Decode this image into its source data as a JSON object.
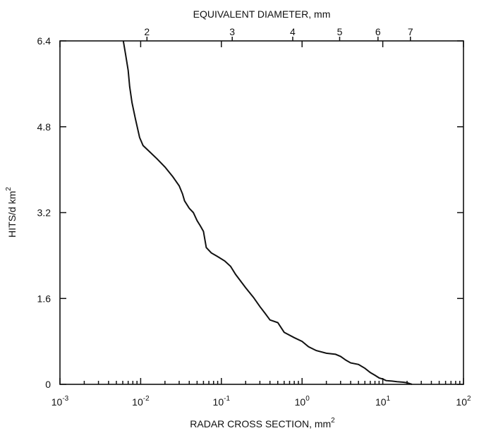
{
  "chart_data": {
    "type": "line",
    "title": "",
    "top_axis": {
      "label": "EQUIVALENT DIAMETER, mm",
      "ticks": [
        2,
        3,
        4,
        5,
        6,
        7
      ],
      "tick_labels": [
        "2",
        "3",
        "4",
        "5",
        "6",
        "7"
      ]
    },
    "xlabel": {
      "base": "RADAR CROSS SECTION, mm",
      "superscript": "2"
    },
    "ylabel": "HITS/d km",
    "ylabel_superscript": "2",
    "xscale": "log",
    "xlim": [
      0.001,
      100
    ],
    "ylim": [
      0,
      6.4
    ],
    "x_ticks": [
      0.001,
      0.01,
      0.1,
      1,
      10,
      100
    ],
    "x_tick_labels": [
      {
        "base": "10",
        "exp": "-3"
      },
      {
        "base": "10",
        "exp": "-2"
      },
      {
        "base": "10",
        "exp": "-1"
      },
      {
        "base": "10",
        "exp": "0"
      },
      {
        "base": "10",
        "exp": "1"
      },
      {
        "base": "10",
        "exp": "2"
      }
    ],
    "y_ticks": [
      0,
      1.6,
      3.2,
      4.8,
      6.4
    ],
    "y_tick_labels": [
      "0",
      "1.6",
      "3.2",
      "4.8",
      "6.4"
    ],
    "grid": false,
    "series": [
      {
        "x": [
          0.0061,
          0.0065,
          0.007,
          0.0073,
          0.0078,
          0.0086,
          0.0097,
          0.0107,
          0.013,
          0.016,
          0.02,
          0.025,
          0.03,
          0.033,
          0.035,
          0.04,
          0.045,
          0.05,
          0.055,
          0.06,
          0.065,
          0.075,
          0.09,
          0.11,
          0.13,
          0.15,
          0.2,
          0.25,
          0.3,
          0.35,
          0.4,
          0.5,
          0.6,
          0.8,
          1.0,
          1.2,
          1.5,
          2.0,
          2.6,
          3.0,
          3.5,
          4.0,
          5.0,
          6.0,
          7.0,
          8.0,
          9.0,
          10.0,
          11.0,
          13.0,
          15.0,
          18.0,
          20.0,
          23.0
        ],
        "y": [
          6.4,
          6.15,
          5.85,
          5.55,
          5.25,
          4.95,
          4.6,
          4.45,
          4.33,
          4.2,
          4.05,
          3.87,
          3.7,
          3.55,
          3.42,
          3.28,
          3.2,
          3.05,
          2.95,
          2.85,
          2.55,
          2.45,
          2.38,
          2.3,
          2.2,
          2.05,
          1.8,
          1.62,
          1.45,
          1.32,
          1.2,
          1.15,
          0.97,
          0.87,
          0.8,
          0.7,
          0.63,
          0.58,
          0.56,
          0.52,
          0.45,
          0.4,
          0.37,
          0.3,
          0.22,
          0.17,
          0.12,
          0.1,
          0.07,
          0.06,
          0.05,
          0.04,
          0.03,
          0.0
        ]
      }
    ]
  }
}
